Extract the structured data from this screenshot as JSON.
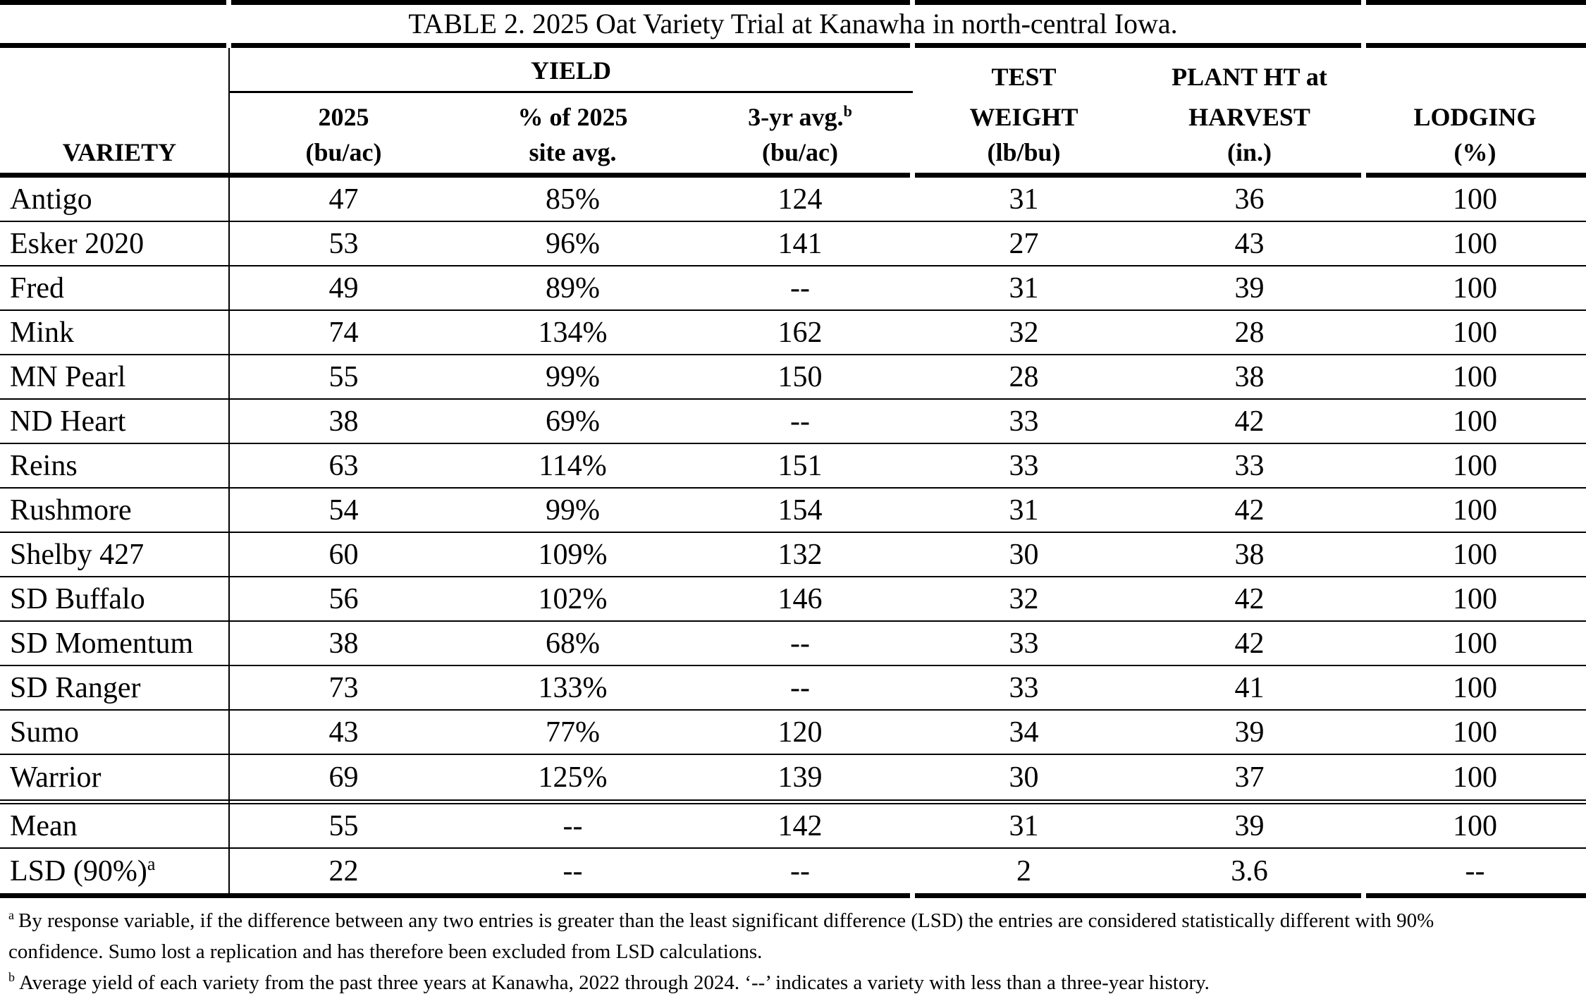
{
  "title": "TABLE 2. 2025 Oat Variety Trial at Kanawha in north-central Iowa.",
  "table": {
    "yield_group_label": "YIELD",
    "columns": {
      "variety": "VARIETY",
      "yield_2025": [
        "2025",
        "(bu/ac)"
      ],
      "pct_site_avg": [
        "% of 2025",
        "site avg."
      ],
      "three_yr_avg": {
        "line1": "3-yr avg.",
        "sup": "b",
        "line2": "(bu/ac)"
      },
      "test_weight": [
        "TEST",
        "WEIGHT",
        "(lb/bu)"
      ],
      "plant_ht": [
        "PLANT HT at",
        "HARVEST",
        "(in.)"
      ],
      "lodging": [
        "LODGING",
        "(%)"
      ]
    },
    "rows": [
      {
        "variety": "Antigo",
        "values": [
          "47",
          "85%",
          "124",
          "31",
          "36",
          "100"
        ]
      },
      {
        "variety": "Esker 2020",
        "values": [
          "53",
          "96%",
          "141",
          "27",
          "43",
          "100"
        ]
      },
      {
        "variety": "Fred",
        "values": [
          "49",
          "89%",
          "--",
          "31",
          "39",
          "100"
        ]
      },
      {
        "variety": "Mink",
        "values": [
          "74",
          "134%",
          "162",
          "32",
          "28",
          "100"
        ]
      },
      {
        "variety": "MN Pearl",
        "values": [
          "55",
          "99%",
          "150",
          "28",
          "38",
          "100"
        ]
      },
      {
        "variety": "ND Heart",
        "values": [
          "38",
          "69%",
          "--",
          "33",
          "42",
          "100"
        ]
      },
      {
        "variety": "Reins",
        "values": [
          "63",
          "114%",
          "151",
          "33",
          "33",
          "100"
        ]
      },
      {
        "variety": "Rushmore",
        "values": [
          "54",
          "99%",
          "154",
          "31",
          "42",
          "100"
        ]
      },
      {
        "variety": "Shelby 427",
        "values": [
          "60",
          "109%",
          "132",
          "30",
          "38",
          "100"
        ]
      },
      {
        "variety": "SD Buffalo",
        "values": [
          "56",
          "102%",
          "146",
          "32",
          "42",
          "100"
        ]
      },
      {
        "variety": "SD Momentum",
        "values": [
          "38",
          "68%",
          "--",
          "33",
          "42",
          "100"
        ]
      },
      {
        "variety": "SD Ranger",
        "values": [
          "73",
          "133%",
          "--",
          "33",
          "41",
          "100"
        ]
      },
      {
        "variety": "Sumo",
        "values": [
          "43",
          "77%",
          "120",
          "34",
          "39",
          "100"
        ]
      },
      {
        "variety": "Warrior",
        "values": [
          "69",
          "125%",
          "139",
          "30",
          "37",
          "100"
        ]
      }
    ],
    "summary_rows": [
      {
        "variety": "Mean",
        "values": [
          "55",
          "--",
          "142",
          "31",
          "39",
          "100"
        ]
      },
      {
        "variety": "LSD (90%)",
        "sup": "a",
        "values": [
          "22",
          "--",
          "--",
          "2",
          "3.6",
          "--"
        ]
      }
    ]
  },
  "footnotes": [
    {
      "marker": "a",
      "text": "By response variable, if the difference between any two entries is greater than the least significant difference (LSD) the entries are considered statistically different with 90% confidence. Sumo lost a replication and has therefore been excluded from LSD calculations."
    },
    {
      "marker": "b",
      "text": "Average yield of each variety from the past three years at Kanawha, 2022 through 2024. ‘--’ indicates a variety with less than a three-year history."
    }
  ]
}
